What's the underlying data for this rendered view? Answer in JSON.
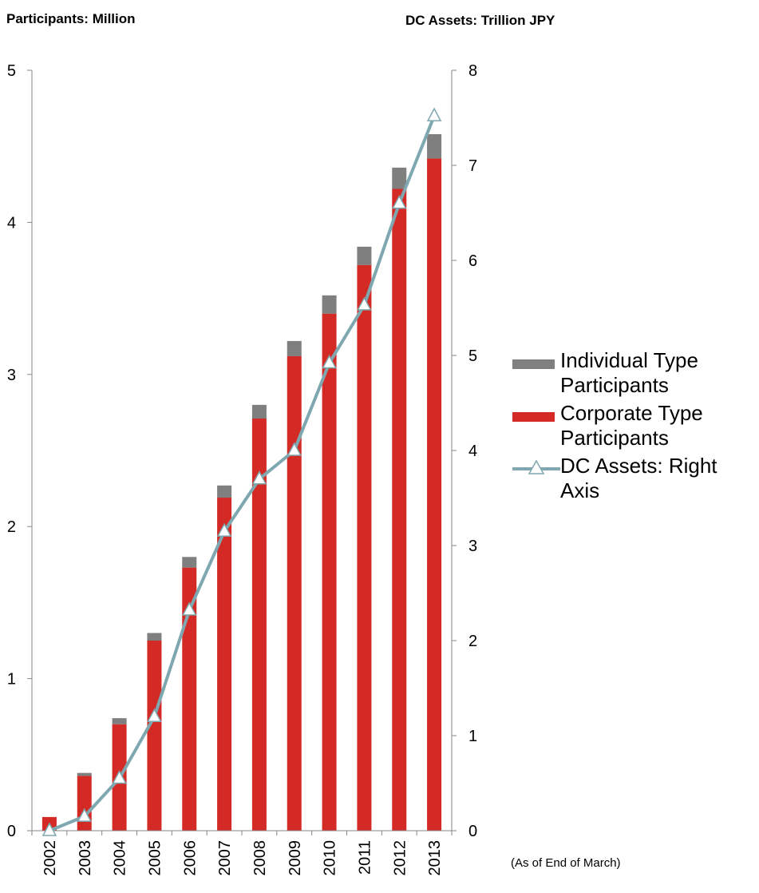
{
  "axis_titles": {
    "left": "Participants: Million",
    "right": "DC Assets: Trillion JPY"
  },
  "note": "(As of End of March)",
  "colors": {
    "individual": "#7f7f7f",
    "corporate": "#d42a26",
    "dc_assets_line": "#7ea7b0"
  },
  "legend": {
    "individual": "Individual Type Participants",
    "corporate": "Corporate Type Participants",
    "dc_assets": "DC Assets: Right Axis"
  },
  "chart_data": {
    "type": "bar",
    "stacked": true,
    "categories": [
      "2002",
      "2003",
      "2004",
      "2005",
      "2006",
      "2007",
      "2008",
      "2009",
      "2010",
      "2011",
      "2012",
      "2013"
    ],
    "series": [
      {
        "name": "Corporate Type Participants",
        "axis": "left",
        "values": [
          0.09,
          0.36,
          0.7,
          1.25,
          1.73,
          2.19,
          2.71,
          3.12,
          3.4,
          3.72,
          4.22,
          4.42
        ]
      },
      {
        "name": "Individual Type Participants",
        "axis": "left",
        "values": [
          0.0,
          0.02,
          0.04,
          0.05,
          0.07,
          0.08,
          0.09,
          0.1,
          0.12,
          0.12,
          0.14,
          0.16
        ]
      },
      {
        "name": "DC Assets: Right Axis",
        "type": "line",
        "axis": "right",
        "values": [
          0.0,
          0.15,
          0.55,
          1.2,
          2.32,
          3.15,
          3.7,
          4.0,
          4.92,
          5.53,
          6.6,
          7.52
        ]
      }
    ],
    "y_left": {
      "range": [
        0,
        5
      ],
      "ticks": [
        "0",
        "1",
        "2",
        "3",
        "4",
        "5"
      ]
    },
    "y_right": {
      "range": [
        0,
        8
      ],
      "ticks": [
        "0",
        "1",
        "2",
        "3",
        "4",
        "5",
        "6",
        "7",
        "8"
      ]
    },
    "grid": false,
    "legend_position": "right"
  }
}
